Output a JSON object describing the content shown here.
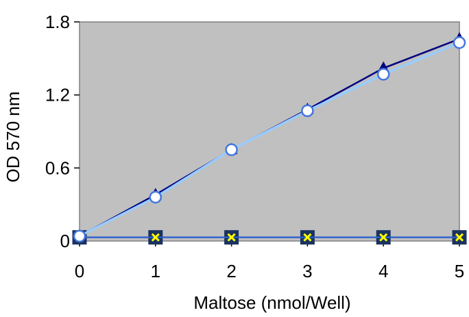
{
  "chart_data": {
    "type": "line",
    "xlabel": "Maltose (nmol/Well)",
    "ylabel": "OD 570 nm",
    "xlim": [
      0,
      5
    ],
    "ylim": [
      0,
      1.8
    ],
    "xticks": [
      0,
      1,
      2,
      3,
      4,
      5
    ],
    "xtick_labels": [
      "0",
      "1",
      "2",
      "3",
      "4",
      "5"
    ],
    "yticks": [
      0,
      0.6,
      1.2,
      1.8
    ],
    "ytick_labels": [
      "0",
      "0.6",
      "1.2",
      "1.8"
    ],
    "grid": false,
    "legend": "none",
    "plot_background": "#C0C0C0",
    "x": [
      0,
      1,
      2,
      3,
      4,
      5
    ],
    "series": [
      {
        "values": [
          0.04,
          0.38,
          0.75,
          1.08,
          1.42,
          1.66
        ],
        "color": "#000080",
        "marker": "triangle"
      },
      {
        "values": [
          0.04,
          0.36,
          0.75,
          1.07,
          1.37,
          1.63
        ],
        "color": "#99CCFF",
        "marker": "circle"
      },
      {
        "values": [
          0.03,
          0.03,
          0.03,
          0.03,
          0.03,
          0.03
        ],
        "color": "#3366CC",
        "marker": "square"
      },
      {
        "values": [
          0.03,
          0.03,
          0.03,
          0.03,
          0.03,
          0.03
        ],
        "color": "#FFFF00",
        "marker": "x"
      }
    ]
  }
}
